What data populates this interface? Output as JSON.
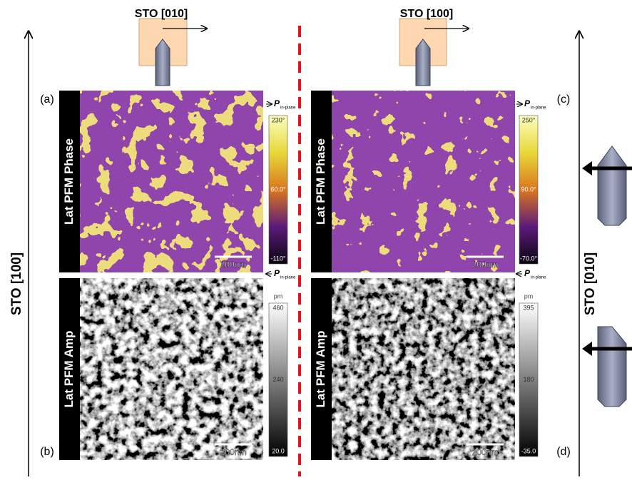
{
  "top_labels": [
    "STO [010]",
    "STO [100]"
  ],
  "axis_labels": [
    "STO [100]",
    "STO [010]"
  ],
  "polarization": {
    "symbol": "P",
    "subscript": "in-plane"
  },
  "panels": [
    {
      "tag": "(a)",
      "label": "Lat PFM Phase",
      "scale_bar": "200nm",
      "colorbar": [
        "230°",
        "60.0°",
        "-110°"
      ]
    },
    {
      "tag": "(b)",
      "label": "Lat PFM Amp",
      "scale_bar": "200nm",
      "unit": "pm",
      "colorbar": [
        "460",
        "240",
        "20.0"
      ]
    },
    {
      "tag": "(c)",
      "label": "Lat PFM Phase",
      "scale_bar": "200nm",
      "colorbar": [
        "250°",
        "90.0°",
        "-70.0°"
      ]
    },
    {
      "tag": "(d)",
      "label": "Lat PFM Amp",
      "scale_bar": "200nm",
      "unit": "pm",
      "colorbar": [
        "395",
        "180",
        "-35.0"
      ]
    }
  ]
}
